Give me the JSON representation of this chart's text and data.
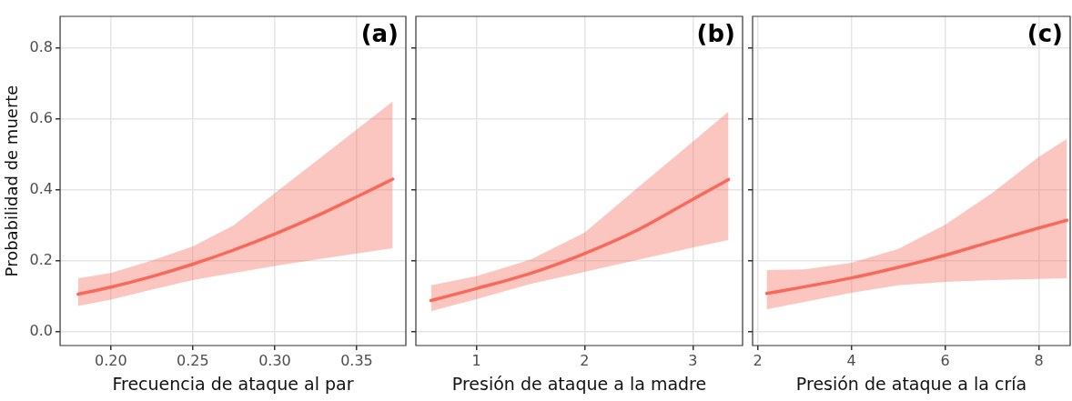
{
  "chart_data": [
    {
      "type": "line",
      "xlabel": "Frecuencia de ataque al par",
      "ylabel": "Probabilidad de muerte",
      "annotations": [
        "(a)"
      ],
      "grid": true,
      "legend": false,
      "xlim": [
        0.169,
        0.38
      ],
      "xticks": [
        {
          "value": 0.2,
          "label": "0.20"
        },
        {
          "value": 0.25,
          "label": "0.25"
        },
        {
          "value": 0.3,
          "label": "0.30"
        },
        {
          "value": 0.35,
          "label": "0.35"
        }
      ],
      "ylim": [
        -0.04,
        0.89
      ],
      "yticks": [
        {
          "value": 0,
          "label": "0.0"
        },
        0.2,
        0.4,
        0.6,
        0.8
      ],
      "series": [
        {
          "color": "#f8695a",
          "x": [
            0.18,
            0.2,
            0.225,
            0.25,
            0.275,
            0.3,
            0.325,
            0.35,
            0.372
          ],
          "values": [
            0.105,
            0.125,
            0.155,
            0.19,
            0.23,
            0.275,
            0.325,
            0.38,
            0.43
          ],
          "lower": [
            0.072,
            0.09,
            0.118,
            0.145,
            0.165,
            0.185,
            0.203,
            0.22,
            0.235
          ],
          "upper": [
            0.15,
            0.165,
            0.2,
            0.24,
            0.3,
            0.39,
            0.48,
            0.57,
            0.65
          ]
        }
      ]
    },
    {
      "type": "line",
      "xlabel": "Presión de ataque a la madre",
      "annotations": [
        "(b)"
      ],
      "grid": true,
      "legend": false,
      "tick_labels": "x",
      "xlim": [
        0.44,
        3.46
      ],
      "xticks": [
        1,
        2,
        3
      ],
      "ylim": [
        -0.04,
        0.89
      ],
      "yticks": [
        0,
        0.2,
        0.4,
        0.6,
        0.8
      ],
      "series": [
        {
          "color": "#f8695a",
          "x": [
            0.58,
            1,
            1.5,
            2,
            2.5,
            3,
            3.33
          ],
          "values": [
            0.087,
            0.121,
            0.164,
            0.22,
            0.288,
            0.373,
            0.429
          ],
          "lower": [
            0.057,
            0.091,
            0.134,
            0.168,
            0.203,
            0.237,
            0.258
          ],
          "upper": [
            0.13,
            0.156,
            0.203,
            0.279,
            0.408,
            0.536,
            0.621
          ]
        }
      ]
    },
    {
      "type": "line",
      "xlabel": "Presión de ataque a la cría",
      "annotations": [
        "(c)"
      ],
      "grid": true,
      "legend": false,
      "tick_labels": "x",
      "xlim": [
        1.89,
        8.67
      ],
      "xticks": [
        2,
        4,
        6,
        8
      ],
      "ylim": [
        -0.04,
        0.89
      ],
      "yticks": [
        0,
        0.2,
        0.4,
        0.6,
        0.8
      ],
      "series": [
        {
          "color": "#f8695a",
          "x": [
            2.19,
            3,
            4,
            5,
            6,
            7,
            8,
            8.6
          ],
          "values": [
            0.107,
            0.126,
            0.151,
            0.181,
            0.215,
            0.254,
            0.292,
            0.314
          ],
          "lower": [
            0.062,
            0.083,
            0.109,
            0.13,
            0.14,
            0.145,
            0.148,
            0.15
          ],
          "upper": [
            0.173,
            0.175,
            0.194,
            0.233,
            0.301,
            0.39,
            0.493,
            0.544
          ]
        }
      ]
    }
  ]
}
